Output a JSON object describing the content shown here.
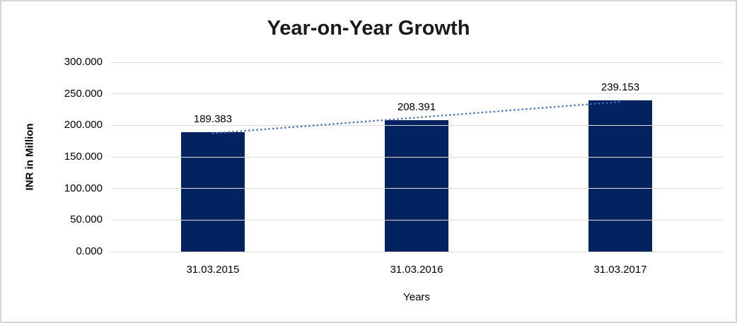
{
  "chart_data": {
    "type": "bar",
    "title": "Year-on-Year Growth",
    "xlabel": "Years",
    "ylabel": "INR in Million",
    "categories": [
      "31.03.2015",
      "31.03.2016",
      "31.03.2017"
    ],
    "values": [
      189.383,
      208.391,
      239.153
    ],
    "data_labels": [
      "189.383",
      "208.391",
      "239.153"
    ],
    "ylim": [
      0,
      300
    ],
    "ytick_step": 50,
    "ytick_labels": [
      "0.000",
      "50.000",
      "100.000",
      "150.000",
      "200.000",
      "250.000",
      "300.000"
    ],
    "grid": true,
    "legend": "none",
    "trendline": {
      "type": "linear",
      "style": "dotted"
    },
    "colors": {
      "bar": "#022260",
      "trendline": "#4472c4",
      "gridline": "#d9d9d9",
      "text": "#000000",
      "frame_border": "#d6d6d6",
      "background": "#ffffff"
    }
  }
}
